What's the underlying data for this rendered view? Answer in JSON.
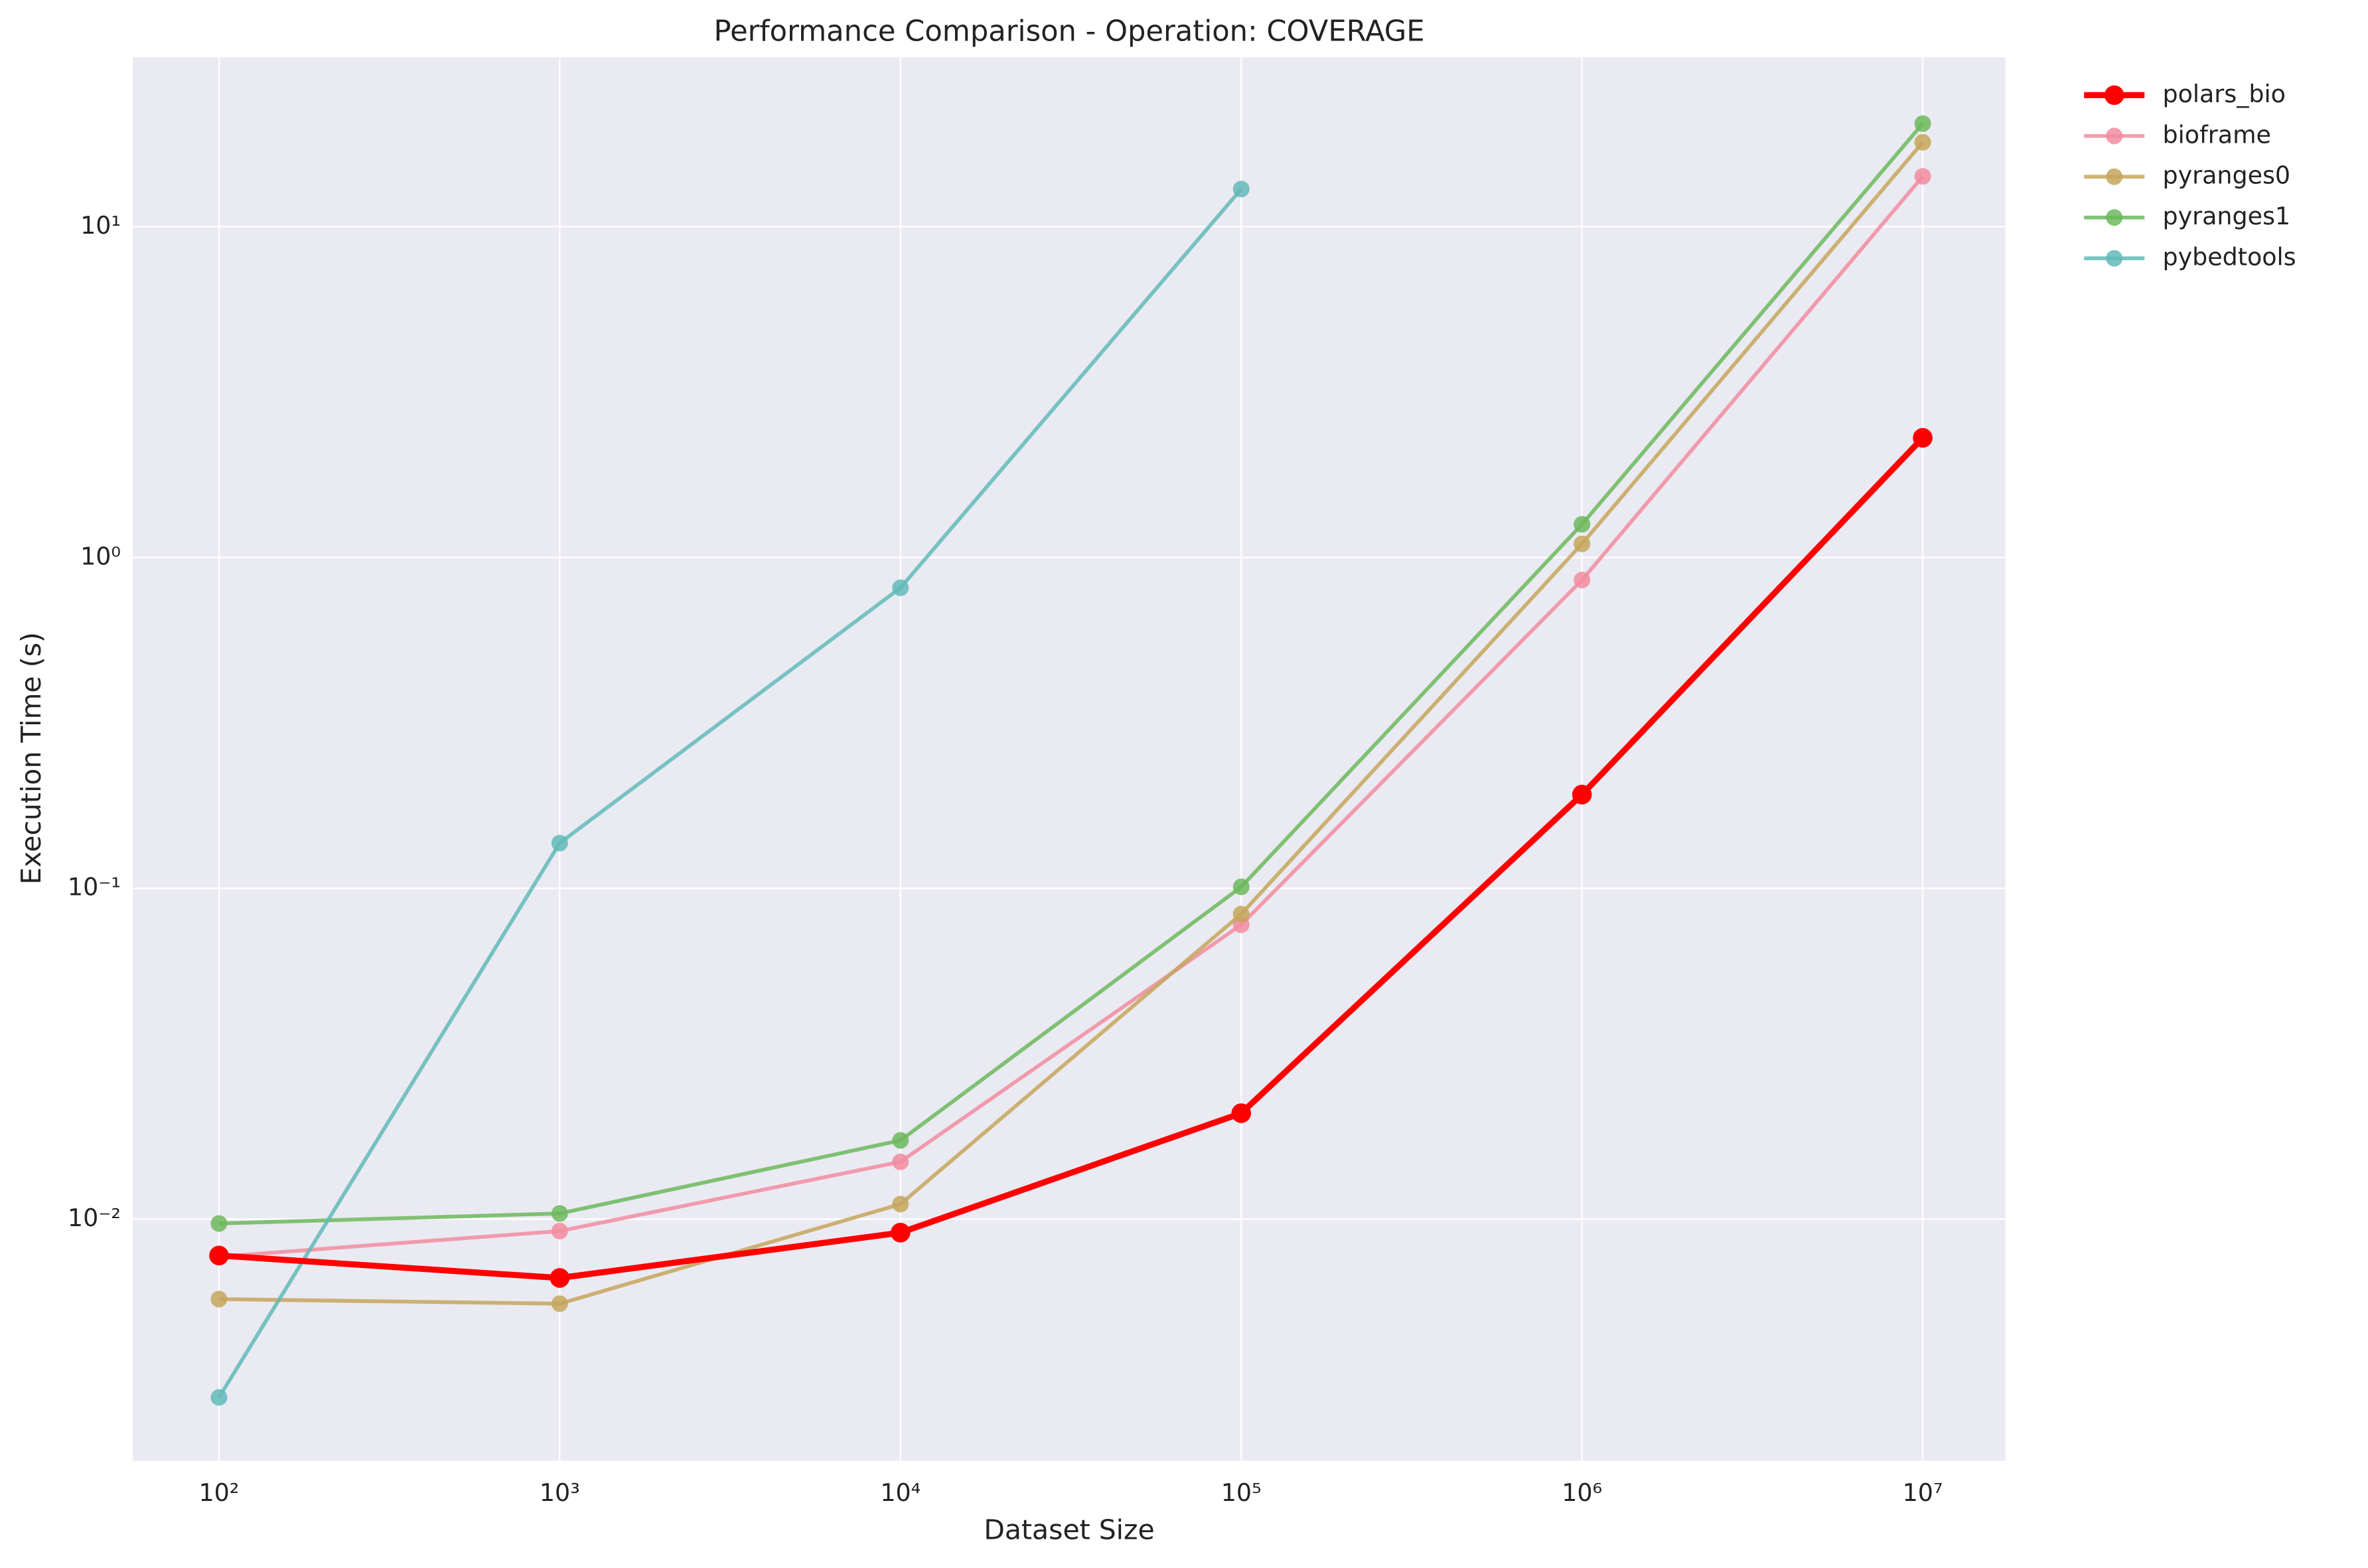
{
  "chart_data": {
    "type": "line",
    "title": "Performance Comparison - Operation: COVERAGE",
    "xlabel": "Dataset Size",
    "ylabel": "Execution Time (s)",
    "x": [
      100,
      1000,
      10000,
      100000,
      1000000,
      10000000
    ],
    "xscale": "log",
    "yscale": "log",
    "grid": true,
    "legend": "outside upper right",
    "xlim": [
      55.9,
      17500000
    ],
    "ylim": [
      0.00186,
      32.5
    ],
    "xticks": [
      {
        "value": 100,
        "label": "10²"
      },
      {
        "value": 1000,
        "label": "10³"
      },
      {
        "value": 10000,
        "label": "10⁴"
      },
      {
        "value": 100000,
        "label": "10⁵"
      },
      {
        "value": 1000000,
        "label": "10⁶"
      },
      {
        "value": 10000000,
        "label": "10⁷"
      }
    ],
    "yticks": [
      {
        "value": 0.01,
        "label": "10⁻²"
      },
      {
        "value": 0.1,
        "label": "10⁻¹"
      },
      {
        "value": 1,
        "label": "10⁰"
      },
      {
        "value": 10,
        "label": "10¹"
      }
    ],
    "series": [
      {
        "name": "polars_bio",
        "color": "#ff0000",
        "values": [
          0.00776,
          0.00664,
          0.0091,
          0.0209,
          0.192,
          2.3
        ]
      },
      {
        "name": "bioframe",
        "color": "#f28ca0",
        "values": [
          0.0077,
          0.0092,
          0.0149,
          0.0776,
          0.855,
          14.2
        ]
      },
      {
        "name": "pyranges0",
        "color": "#c6a65c",
        "values": [
          0.00573,
          0.00555,
          0.0111,
          0.0836,
          1.1,
          18.0
        ]
      },
      {
        "name": "pyranges1",
        "color": "#6cb85c",
        "values": [
          0.0097,
          0.0104,
          0.0173,
          0.101,
          1.26,
          20.5
        ]
      },
      {
        "name": "pybedtools",
        "color": "#62bab8",
        "values": [
          0.00289,
          0.137,
          0.81,
          13.0,
          null,
          null
        ]
      }
    ]
  }
}
